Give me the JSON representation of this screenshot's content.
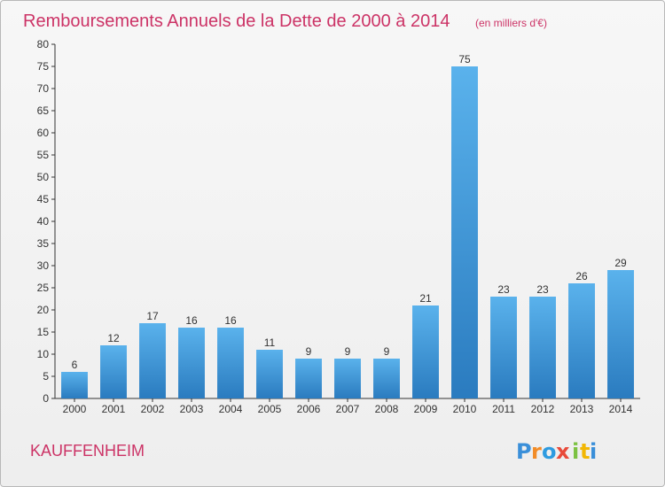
{
  "colors": {
    "title": "#cc3366",
    "commune": "#cc3366",
    "bar_light": "#5ab2ec",
    "bar_dark": "#2a7bbf",
    "axis": "#333333",
    "grid": "#dddddd",
    "logo": [
      "#3a8fd9",
      "#f28c28",
      "#2e9be0",
      "#e84a3a",
      "#7cc242",
      "#f2b705",
      "#3a8fd9"
    ]
  },
  "commune": "KAUFFENHEIM",
  "logo_letters": [
    "P",
    "r",
    "o",
    "x",
    "i",
    "t",
    "i"
  ],
  "chart_data": {
    "type": "bar",
    "title": "Remboursements Annuels de la Dette de 2000 à 2014",
    "subtitle": "(en milliers d'€)",
    "xlabel": "",
    "ylabel": "",
    "categories": [
      "2000",
      "2001",
      "2002",
      "2003",
      "2004",
      "2005",
      "2006",
      "2007",
      "2008",
      "2009",
      "2010",
      "2011",
      "2012",
      "2013",
      "2014"
    ],
    "values": [
      6,
      12,
      17,
      16,
      16,
      11,
      9,
      9,
      9,
      21,
      75,
      23,
      23,
      26,
      29
    ],
    "ylim": [
      0,
      80
    ],
    "yticks": [
      0,
      5,
      10,
      15,
      20,
      25,
      30,
      35,
      40,
      45,
      50,
      55,
      60,
      65,
      70,
      75,
      80
    ],
    "grid": false,
    "legend": "none",
    "data_labels": true
  }
}
